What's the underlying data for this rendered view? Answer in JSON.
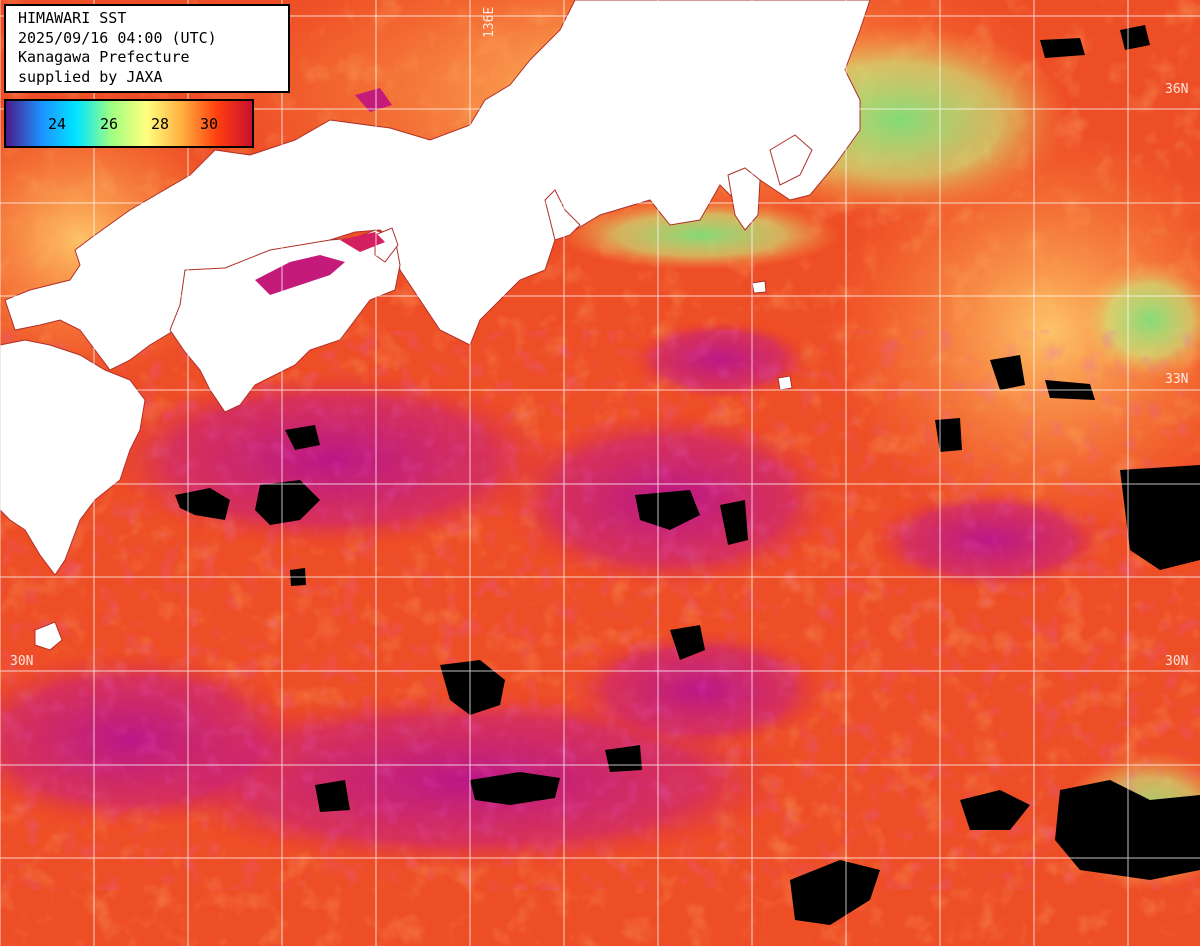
{
  "header": {
    "title": "HIMAWARI SST",
    "datetime": "2025/09/16 04:00 (UTC)",
    "region": "Kanagawa Prefecture",
    "credit": "supplied by JAXA"
  },
  "legend": {
    "ticks": [
      "24",
      "26",
      "28",
      "30"
    ],
    "colors": [
      "#4a1a8a",
      "#1e90ff",
      "#00e5ff",
      "#a0ff80",
      "#ffff80",
      "#ffb040",
      "#ff4010",
      "#c8102e"
    ]
  },
  "gridlabels": {
    "lat_36": "36N",
    "lat_33": "33N",
    "lat_30": "30N",
    "lon_136": "136E"
  },
  "colors": {
    "land": "#ffffff",
    "cloud": "#000000",
    "warm": "#f0502a",
    "hot": "#cc1f86",
    "cool": "#ffb050",
    "coastal": "#80e070",
    "grid": "#ffffff"
  }
}
